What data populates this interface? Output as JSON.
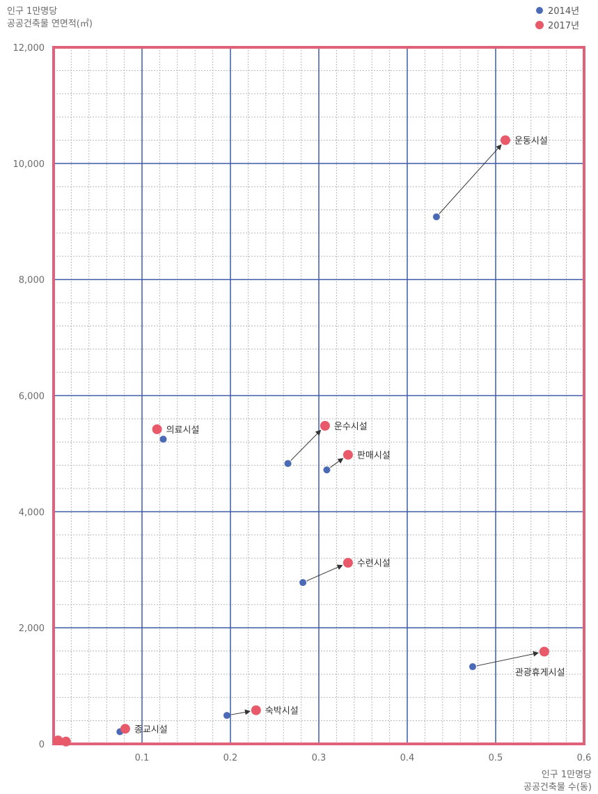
{
  "chart_data": {
    "type": "scatter",
    "ylabel": [
      "인구 1만명당",
      "공공건축물 연면적(㎡)"
    ],
    "xlabel": [
      "인구 1만명당",
      "공공건축물 수(동)"
    ],
    "xlim": [
      0,
      0.6
    ],
    "ylim": [
      0,
      12000
    ],
    "x_ticks": [
      {
        "v": 0.1,
        "label": "0.1"
      },
      {
        "v": 0.2,
        "label": "0.2"
      },
      {
        "v": 0.3,
        "label": "0.3"
      },
      {
        "v": 0.4,
        "label": "0.4"
      },
      {
        "v": 0.5,
        "label": "0.5"
      },
      {
        "v": 0.6,
        "label": "0.6"
      }
    ],
    "y_ticks": [
      {
        "v": 0,
        "label": "0"
      },
      {
        "v": 2000,
        "label": "2,000"
      },
      {
        "v": 4000,
        "label": "4,000"
      },
      {
        "v": 6000,
        "label": "6,000"
      },
      {
        "v": 8000,
        "label": "8,000"
      },
      {
        "v": 10000,
        "label": "10,000"
      },
      {
        "v": 12000,
        "label": "12,000"
      }
    ],
    "grid": true,
    "legend_position": "top-right",
    "series": [
      {
        "name": "2014년",
        "color": "#4a6ab5"
      },
      {
        "name": "2017년",
        "color": "#e85a6a"
      }
    ],
    "facilities": [
      {
        "name": "운동시설",
        "x2014": 0.433,
        "y2014": 9080,
        "x2017": 0.511,
        "y2017": 10400,
        "label_anchor": "right",
        "arrow": true
      },
      {
        "name": "의료시설",
        "x2014": 0.124,
        "y2014": 5250,
        "x2017": 0.117,
        "y2017": 5420,
        "label_anchor": "right",
        "arrow": false
      },
      {
        "name": "운수시설",
        "x2014": 0.265,
        "y2014": 4830,
        "x2017": 0.307,
        "y2017": 5480,
        "label_anchor": "right",
        "arrow": true
      },
      {
        "name": "판매시설",
        "x2014": 0.309,
        "y2014": 4720,
        "x2017": 0.333,
        "y2017": 4980,
        "label_anchor": "right",
        "arrow": true
      },
      {
        "name": "수련시설",
        "x2014": 0.282,
        "y2014": 2780,
        "x2017": 0.333,
        "y2017": 3120,
        "label_anchor": "right",
        "arrow": true
      },
      {
        "name": "관광휴게시설",
        "x2014": 0.474,
        "y2014": 1330,
        "x2017": 0.555,
        "y2017": 1590,
        "label_anchor": "below",
        "arrow": true
      },
      {
        "name": "숙박시설",
        "x2014": 0.196,
        "y2014": 490,
        "x2017": 0.229,
        "y2017": 580,
        "label_anchor": "right",
        "arrow": true
      },
      {
        "name": "종교시설",
        "x2014": 0.075,
        "y2014": 210,
        "x2017": 0.081,
        "y2017": 260,
        "label_anchor": "right",
        "arrow": false
      },
      {
        "name": "",
        "x2014": null,
        "y2014": null,
        "x2017": 0.005,
        "y2017": 60,
        "label_anchor": "none",
        "arrow": false
      },
      {
        "name": "",
        "x2014": null,
        "y2014": null,
        "x2017": 0.014,
        "y2017": 40,
        "label_anchor": "none",
        "arrow": false
      }
    ]
  }
}
